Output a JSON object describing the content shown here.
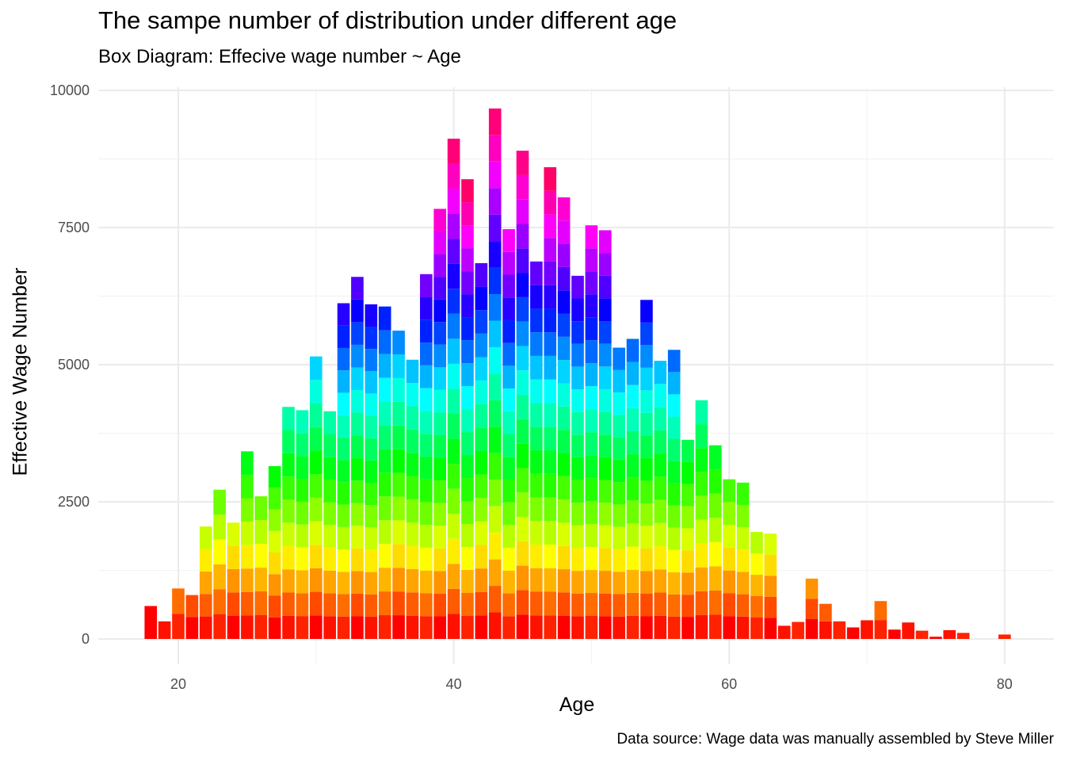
{
  "chart_data": {
    "type": "bar",
    "stacked": true,
    "title": "The sampe number of distribution under different age",
    "subtitle": "Box Diagram: Effecive wage number ~ Age",
    "caption": "Data source: Wage data was manually assembled by Steve Miller",
    "xlabel": "Age",
    "ylabel": "Effective Wage Number",
    "xlim": [
      14.5,
      82.5
    ],
    "ylim": [
      -400,
      10100
    ],
    "xticks": [
      20,
      40,
      60,
      80
    ],
    "yticks": [
      0,
      2500,
      5000,
      7500,
      10000
    ],
    "grid": true,
    "legend": "none",
    "palette": "rainbow (red to magenta by stack segment)",
    "x": [
      18,
      19,
      20,
      21,
      22,
      23,
      24,
      25,
      26,
      27,
      28,
      29,
      30,
      31,
      32,
      33,
      34,
      35,
      36,
      37,
      38,
      39,
      40,
      41,
      42,
      43,
      44,
      45,
      46,
      47,
      48,
      49,
      50,
      51,
      52,
      53,
      54,
      55,
      56,
      57,
      58,
      59,
      60,
      61,
      62,
      63,
      64,
      65,
      66,
      67,
      68,
      69,
      70,
      71,
      72,
      73,
      74,
      75,
      76,
      77,
      78,
      79,
      80
    ],
    "values": [
      600,
      320,
      920,
      800,
      2050,
      2720,
      2120,
      3420,
      2600,
      3150,
      4230,
      4170,
      5150,
      4150,
      6120,
      6600,
      6100,
      6060,
      5620,
      5090,
      6650,
      7840,
      9120,
      8380,
      6850,
      9670,
      7470,
      8900,
      6880,
      8600,
      8050,
      6620,
      7540,
      7450,
      5310,
      5470,
      6180,
      5070,
      5270,
      3630,
      4350,
      3530,
      2910,
      2850,
      1950,
      1920,
      240,
      310,
      1100,
      640,
      320,
      210,
      340,
      690,
      170,
      300,
      150,
      40,
      160,
      110,
      0,
      0,
      80
    ]
  }
}
